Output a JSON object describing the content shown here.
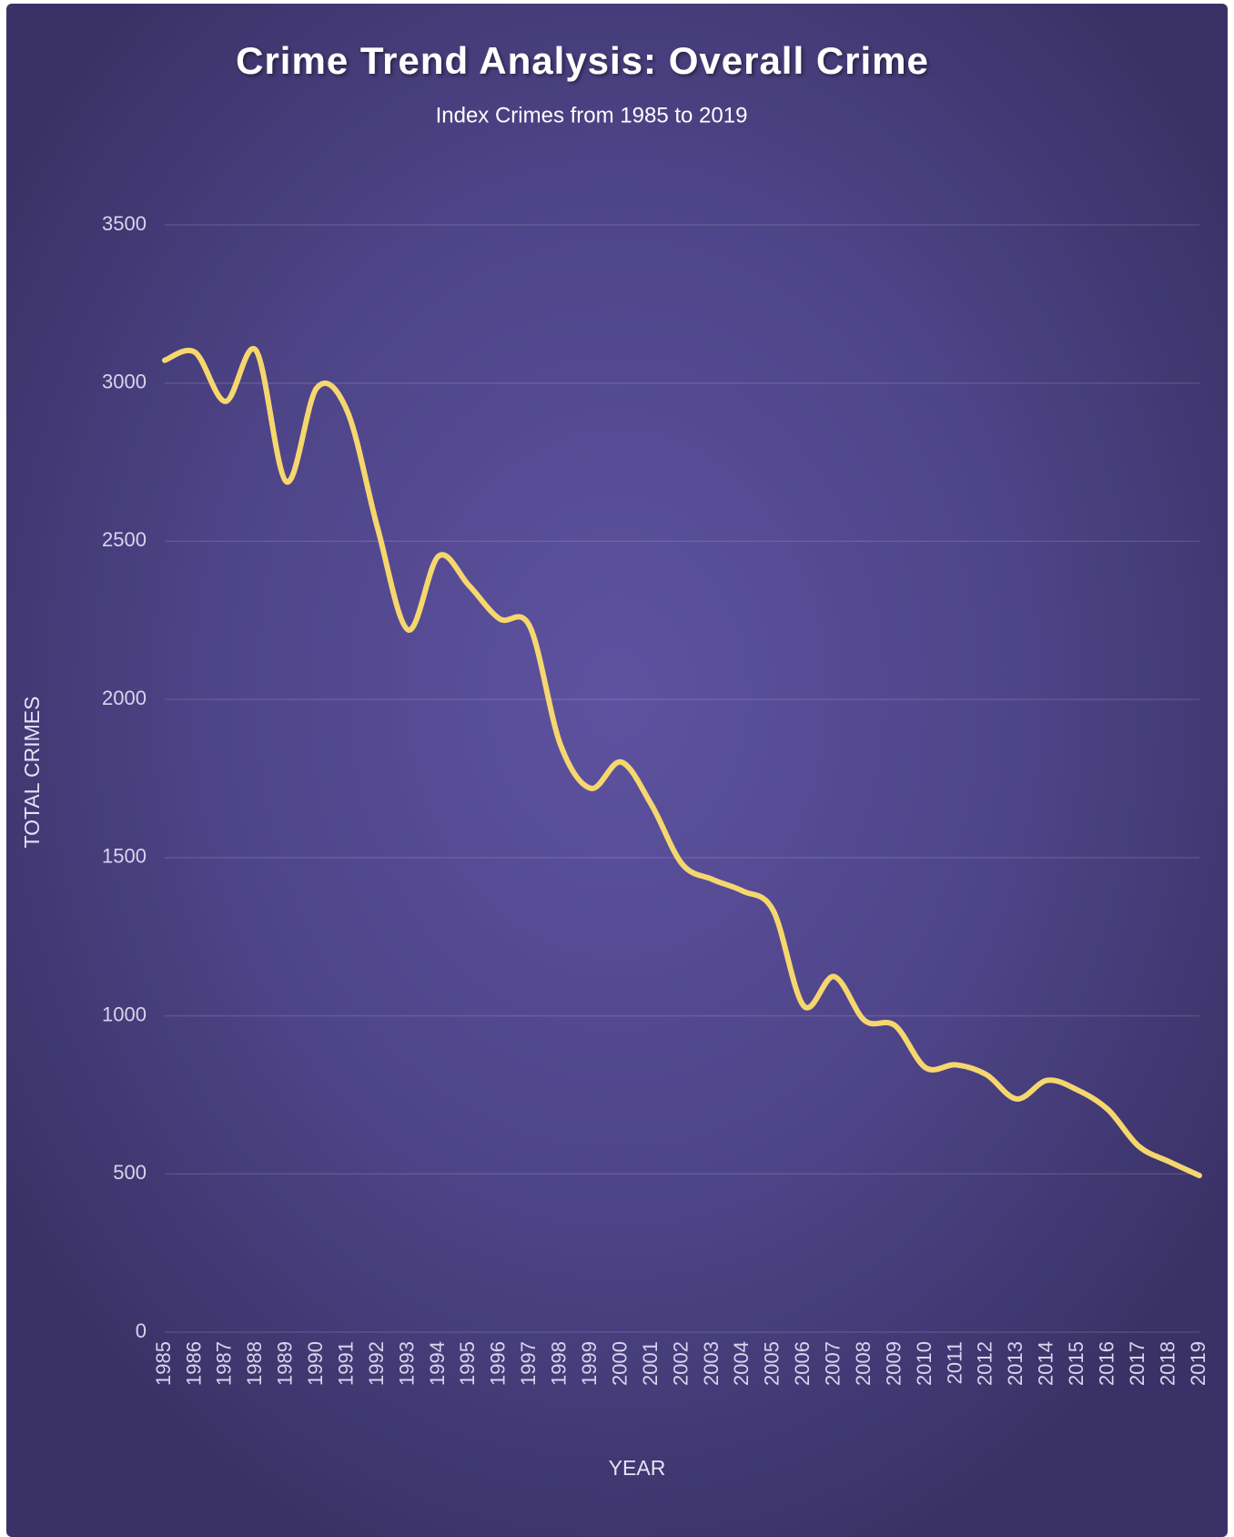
{
  "chart_data": {
    "type": "line",
    "title": "Crime Trend Analysis: Overall Crime",
    "subtitle": "Index Crimes from 1985 to 2019",
    "x_label": "YEAR",
    "y_label": "TOTAL CRIMES",
    "categories": [
      "1985",
      "1986",
      "1987",
      "1988",
      "1989",
      "1990",
      "1991",
      "1992",
      "1993",
      "1994",
      "1995",
      "1996",
      "1997",
      "1998",
      "1999",
      "2000",
      "2001",
      "2002",
      "2003",
      "2004",
      "2005",
      "2006",
      "2007",
      "2008",
      "2009",
      "2010",
      "2011",
      "2012",
      "2013",
      "2014",
      "2015",
      "2016",
      "2017",
      "2018",
      "2019"
    ],
    "series": [
      {
        "name": "Overall Crime",
        "color": "#f5d76e",
        "values": [
          3072,
          3097,
          2942,
          3103,
          2688,
          2985,
          2911,
          2540,
          2220,
          2453,
          2360,
          2255,
          2230,
          1858,
          1719,
          1802,
          1666,
          1480,
          1431,
          1394,
          1332,
          1031,
          1124,
          985,
          969,
          836,
          845,
          814,
          737,
          796,
          765,
          703,
          588,
          539,
          495
        ]
      }
    ],
    "ylim": [
      0,
      3500
    ],
    "yticks": [
      0,
      500,
      1000,
      1500,
      2000,
      2500,
      3000,
      3500
    ],
    "grid": true,
    "smooth": true
  }
}
